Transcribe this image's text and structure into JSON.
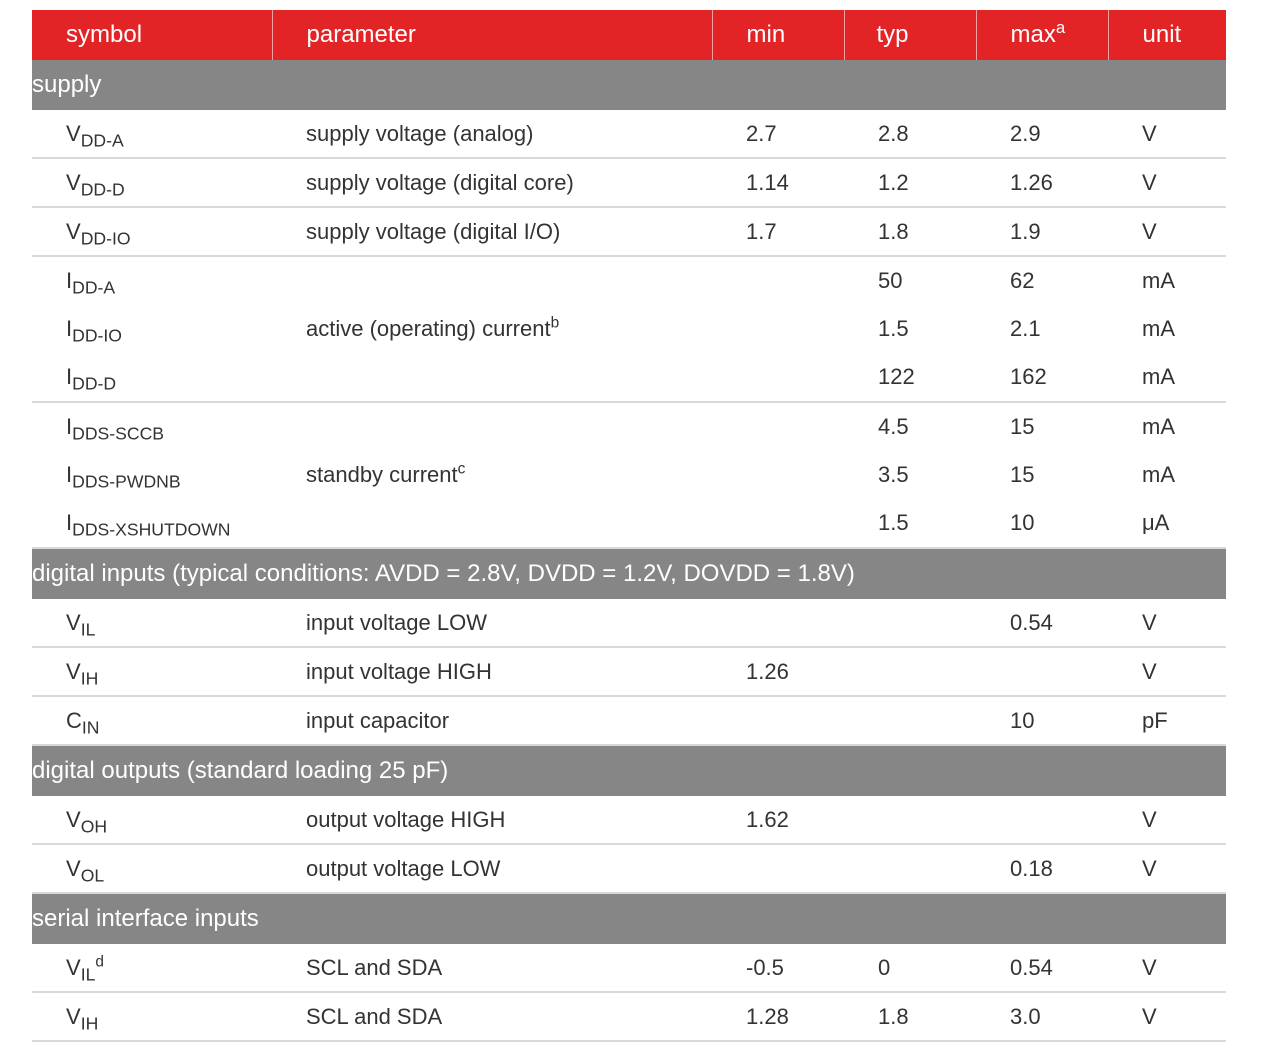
{
  "table": {
    "headers": {
      "symbol": "symbol",
      "parameter": "parameter",
      "min": "min",
      "typ": "typ",
      "max": "max",
      "max_note": "a",
      "unit": "unit"
    },
    "sections": [
      {
        "title": "supply",
        "rows": [
          {
            "sym": "V",
            "sub": "DD-A",
            "param": "supply voltage (analog)",
            "min": "2.7",
            "typ": "2.8",
            "max": "2.9",
            "unit": "V"
          },
          {
            "sym": "V",
            "sub": "DD-D",
            "param": "supply voltage (digital core)",
            "min": "1.14",
            "typ": "1.2",
            "max": "1.26",
            "unit": "V"
          },
          {
            "sym": "V",
            "sub": "DD-IO",
            "param": "supply voltage (digital I/O)",
            "min": "1.7",
            "typ": "1.8",
            "max": "1.9",
            "unit": "V"
          }
        ],
        "groups": [
          {
            "param": "active (operating) current",
            "param_note": "b",
            "rows": [
              {
                "sym": "I",
                "sub": "DD-A",
                "min": "",
                "typ": "50",
                "max": "62",
                "unit": "mA"
              },
              {
                "sym": "I",
                "sub": "DD-IO",
                "min": "",
                "typ": "1.5",
                "max": "2.1",
                "unit": "mA"
              },
              {
                "sym": "I",
                "sub": "DD-D",
                "min": "",
                "typ": "122",
                "max": "162",
                "unit": "mA"
              }
            ]
          },
          {
            "param": "standby current",
            "param_note": "c",
            "rows": [
              {
                "sym": "I",
                "sub": "DDS-SCCB",
                "min": "",
                "typ": "4.5",
                "max": "15",
                "unit": "mA"
              },
              {
                "sym": "I",
                "sub": "DDS-PWDNB",
                "min": "",
                "typ": "3.5",
                "max": "15",
                "unit": "mA"
              },
              {
                "sym": "I",
                "sub": "DDS-XSHUTDOWN",
                "min": "",
                "typ": "1.5",
                "max": "10",
                "unit": "μA"
              }
            ]
          }
        ]
      },
      {
        "title": "digital inputs (typical conditions: AVDD = 2.8V, DVDD = 1.2V, DOVDD = 1.8V)",
        "rows": [
          {
            "sym": "V",
            "sub": "IL",
            "param": "input voltage LOW",
            "min": "",
            "typ": "",
            "max": "0.54",
            "unit": "V"
          },
          {
            "sym": "V",
            "sub": "IH",
            "param": "input voltage HIGH",
            "min": "1.26",
            "typ": "",
            "max": "",
            "unit": "V"
          },
          {
            "sym": "C",
            "sub": "IN",
            "param": "input capacitor",
            "min": "",
            "typ": "",
            "max": "10",
            "unit": "pF"
          }
        ]
      },
      {
        "title": "digital outputs (standard loading 25 pF)",
        "rows": [
          {
            "sym": "V",
            "sub": "OH",
            "param": "output voltage HIGH",
            "min": "1.62",
            "typ": "",
            "max": "",
            "unit": "V"
          },
          {
            "sym": "V",
            "sub": "OL",
            "param": "output voltage LOW",
            "min": "",
            "typ": "",
            "max": "0.18",
            "unit": "V"
          }
        ]
      },
      {
        "title": "serial interface inputs",
        "rows": [
          {
            "sym": "V",
            "sub": "IL",
            "sup": "d",
            "param": "SCL and SDA",
            "min": "-0.5",
            "typ": "0",
            "max": "0.54",
            "unit": "V"
          },
          {
            "sym": "V",
            "sub": "IH",
            "param": "SCL and SDA",
            "min": "1.28",
            "typ": "1.8",
            "max": "3.0",
            "unit": "V"
          }
        ]
      }
    ]
  }
}
